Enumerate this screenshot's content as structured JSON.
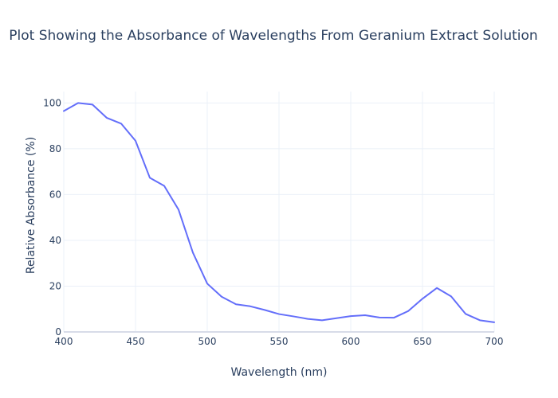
{
  "chart_data": {
    "type": "line",
    "title": "Plot Showing the Absorbance of Wavelengths From Geranium Extract Solution",
    "xlabel": "Wavelength (nm)",
    "ylabel": "Relative Absorbance (%)",
    "xlim": [
      400,
      700
    ],
    "ylim": [
      0,
      105
    ],
    "x_ticks": [
      400,
      450,
      500,
      550,
      600,
      650,
      700
    ],
    "y_ticks": [
      0,
      20,
      40,
      60,
      80,
      100
    ],
    "grid": true,
    "legend": "none",
    "series": [
      {
        "color": "#636efa",
        "x": [
          400,
          410,
          420,
          430,
          440,
          450,
          460,
          470,
          480,
          490,
          500,
          510,
          520,
          530,
          540,
          550,
          560,
          570,
          580,
          590,
          600,
          610,
          620,
          630,
          640,
          650,
          660,
          670,
          680,
          690,
          700
        ],
        "y": [
          96.5,
          100,
          99.3,
          93.5,
          91,
          83.5,
          67.3,
          63.8,
          53.4,
          34.6,
          21.1,
          15.4,
          12.1,
          11.2,
          9.6,
          7.8,
          6.8,
          5.7,
          5.1,
          6.0,
          6.9,
          7.3,
          6.3,
          6.2,
          9.1,
          14.5,
          19.2,
          15.5,
          7.9,
          5.1,
          4.2
        ]
      }
    ]
  }
}
